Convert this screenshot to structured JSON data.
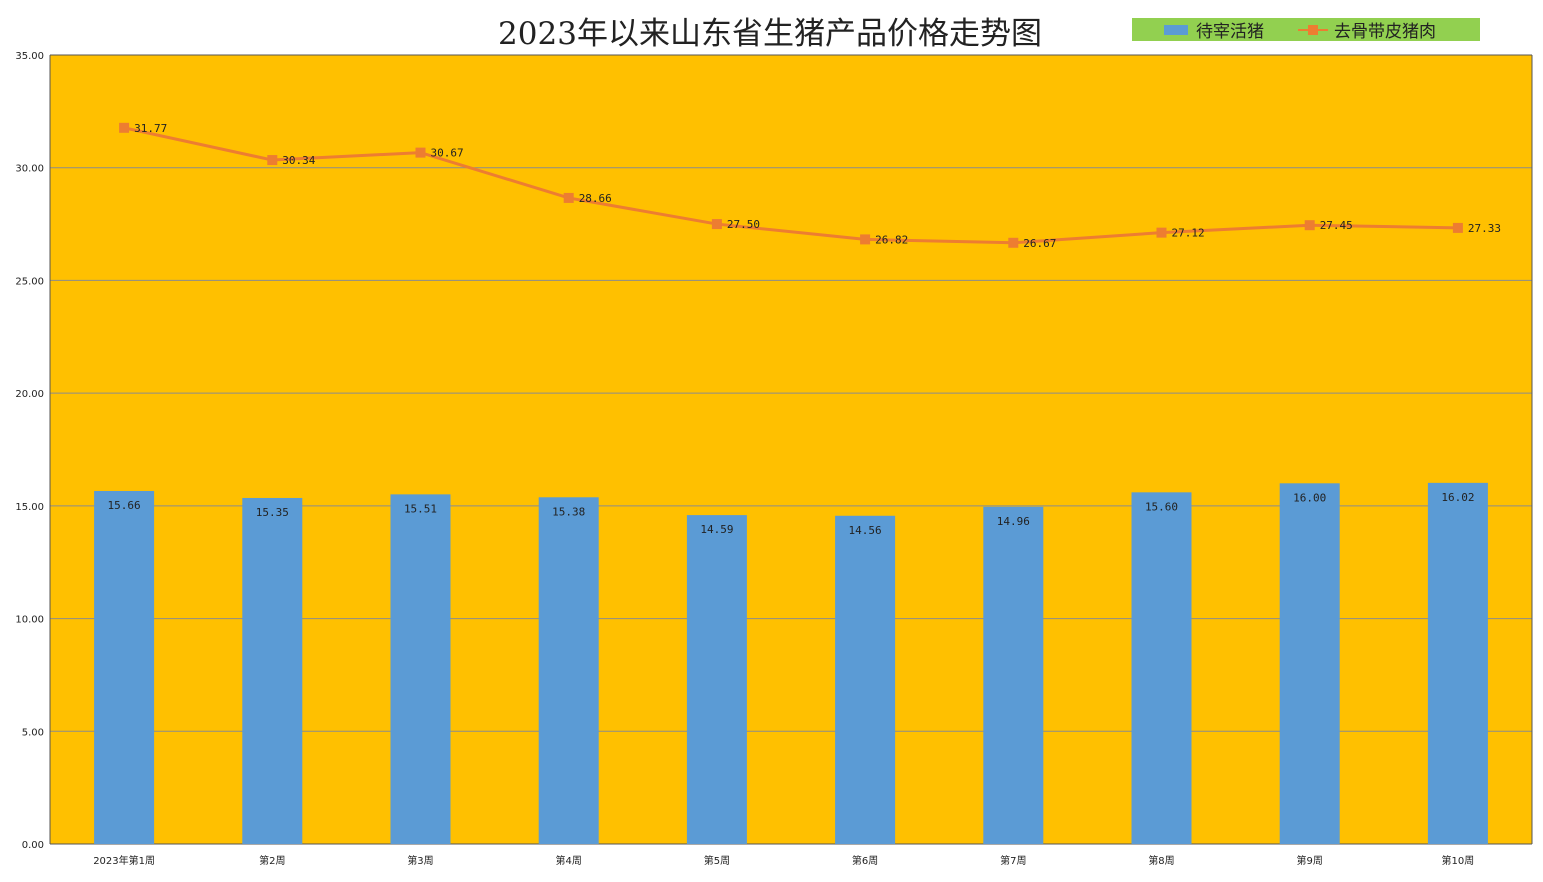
{
  "chart_data": {
    "type": "bar",
    "title": "2023年以来山东省生猪产品价格走势图",
    "categories": [
      "2023年第1周",
      "第2周",
      "第3周",
      "第4周",
      "第5周",
      "第6周",
      "第7周",
      "第8周",
      "第9周",
      "第10周"
    ],
    "series": [
      {
        "name": "待宰活猪",
        "type": "bar",
        "color": "#5b9bd5",
        "values": [
          15.66,
          15.35,
          15.51,
          15.38,
          14.59,
          14.56,
          14.96,
          15.6,
          16.0,
          16.02
        ],
        "labels": [
          "15.66",
          "15.35",
          "15.51",
          "15.38",
          "14.59",
          "14.56",
          "14.96",
          "15.60",
          "16.00",
          "16.02"
        ]
      },
      {
        "name": "去骨带皮猪肉",
        "type": "line",
        "color": "#ed7d31",
        "values": [
          31.77,
          30.34,
          30.67,
          28.66,
          27.5,
          26.82,
          26.67,
          27.12,
          27.45,
          27.33
        ],
        "labels": [
          "31.77",
          "30.34",
          "30.67",
          "28.66",
          "27.50",
          "26.82",
          "26.67",
          "27.12",
          "27.45",
          "27.33"
        ]
      }
    ],
    "ylim": [
      0,
      35
    ],
    "yticks": [
      "0.00",
      "5.00",
      "10.00",
      "15.00",
      "20.00",
      "25.00",
      "30.00",
      "35.00"
    ],
    "grid": true,
    "legend_position": "top-right",
    "plot_background": "#ffc000",
    "legend_background": "#92d050"
  }
}
